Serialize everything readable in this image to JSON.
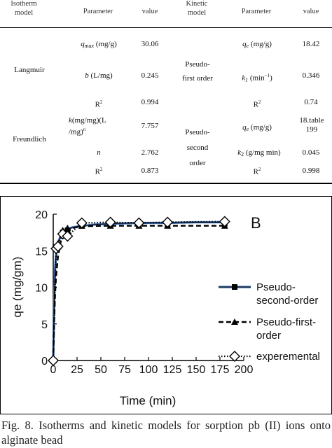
{
  "table": {
    "headers": {
      "isotherm_model": "Isotherm\nmodel",
      "parameter_left": "Parameter",
      "value_left": "value",
      "kinetic_model": "Kinetic\nmodel",
      "parameter_right": "Parameter",
      "value_right": "value"
    },
    "isotherms": [
      {
        "model": "Langmuir",
        "rows": [
          {
            "parameter": "q_max (mg/g)",
            "value": "30.06"
          },
          {
            "parameter": "b (L/mg)",
            "value": "0.245"
          },
          {
            "parameter": "R²",
            "value": "0.994"
          }
        ]
      },
      {
        "model": "Freundlich",
        "rows": [
          {
            "parameter": "k(mg/mg)(L/mg)^n",
            "value": "7.757"
          },
          {
            "parameter": "n",
            "value": "2.762"
          },
          {
            "parameter": "R²",
            "value": "0.873"
          }
        ]
      }
    ],
    "kinetics": [
      {
        "model": "Pseudo-\nfirst order",
        "rows": [
          {
            "parameter": "q_e (mg/g)",
            "value": "18.42"
          },
          {
            "parameter": "k1 (min⁻¹)",
            "value": "0.346"
          },
          {
            "parameter": "R²",
            "value": "0.74"
          }
        ]
      },
      {
        "model": "Pseudo-\nsecond\norder",
        "rows": [
          {
            "parameter": "q_e (mg/g)",
            "value": "18.table\n199"
          },
          {
            "parameter": "k2 (g/mg min)",
            "value": "0.045"
          },
          {
            "parameter": "R²",
            "value": "0.998"
          }
        ]
      }
    ]
  },
  "chart_data": {
    "type": "line",
    "panel_label": "B",
    "xlabel": "Time (min)",
    "ylabel": "qe (mg/gm)",
    "xlim": [
      0,
      200
    ],
    "ylim": [
      0,
      20
    ],
    "xticks": [
      0,
      25,
      50,
      75,
      100,
      125,
      150,
      175,
      200
    ],
    "yticks": [
      0,
      5,
      10,
      15,
      20
    ],
    "legend_position": "right",
    "series": [
      {
        "name": "Pseudo-\nsecond-order",
        "style": "solid-blue-with-black-core",
        "marker": "square",
        "color": "#3f6fb5",
        "marker_x": [
          0,
          3,
          5,
          10,
          15,
          30,
          60,
          90,
          120,
          180
        ],
        "marker_y": [
          0,
          15.5,
          15.6,
          17.5,
          17.8,
          18.4,
          18.5,
          18.5,
          18.6,
          18.7
        ],
        "curve_x": [
          0,
          1,
          2,
          3,
          5,
          8,
          10,
          15,
          20,
          30,
          45,
          60,
          90,
          120,
          150,
          180
        ],
        "curve_y": [
          0,
          8.9,
          12.5,
          14.4,
          16.1,
          17.1,
          17.5,
          17.9,
          18.2,
          18.4,
          18.6,
          18.7,
          18.8,
          18.8,
          18.9,
          18.9
        ]
      },
      {
        "name": "Pseudo-first-\norder",
        "style": "dashed-black",
        "marker": "triangle",
        "color": "#000000",
        "marker_x": [
          0,
          5,
          10,
          15,
          30,
          60,
          90,
          120,
          180
        ],
        "marker_y": [
          0,
          16.0,
          17.8,
          18.1,
          18.4,
          18.4,
          18.4,
          18.4,
          18.4
        ],
        "curve_x": [
          0,
          1,
          2,
          3,
          5,
          8,
          10,
          15,
          20,
          30,
          60,
          90,
          120,
          180
        ],
        "curve_y": [
          0,
          5.5,
          9.1,
          11.5,
          14.2,
          16.3,
          17.0,
          17.8,
          18.1,
          18.35,
          18.42,
          18.42,
          18.42,
          18.42
        ]
      },
      {
        "name": "experemental",
        "style": "dotted-black",
        "marker": "diamond",
        "color": "#000000",
        "x": [
          0,
          3,
          5,
          10,
          15,
          30,
          60,
          90,
          120,
          180
        ],
        "y": [
          0,
          15.3,
          15.6,
          17.3,
          17.0,
          18.8,
          18.9,
          18.8,
          18.9,
          19.0
        ]
      }
    ]
  },
  "caption": "Fig. 8. Isotherms and kinetic models for sorption pb (II) ions onto alginate bead"
}
